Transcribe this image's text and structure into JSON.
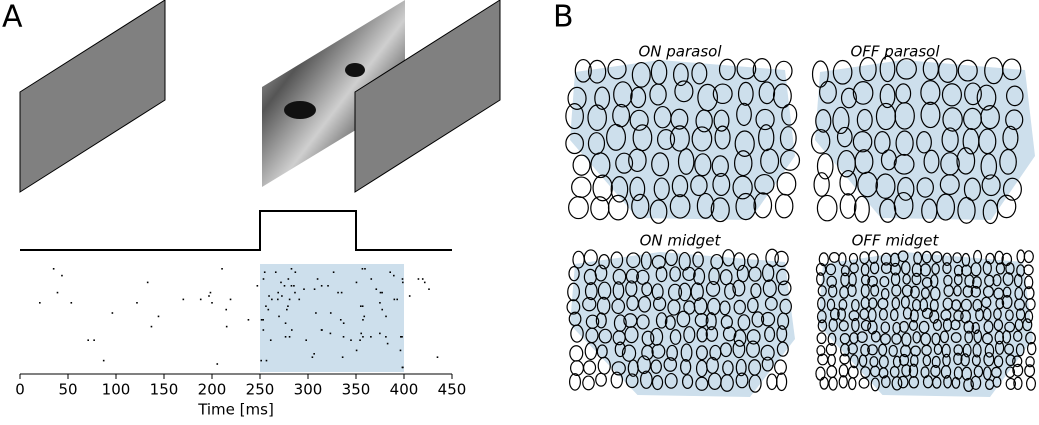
{
  "panel_a": {
    "label": "A",
    "xlim": [
      0,
      450
    ],
    "xticks": [
      0,
      50,
      100,
      150,
      200,
      250,
      300,
      350,
      400,
      450
    ],
    "xlabel": "Time [ms]",
    "stimulus_ms": [
      250,
      350
    ],
    "shaded_ms": [
      250,
      400
    ]
  },
  "panel_b": {
    "label": "B",
    "mosaics": [
      {
        "title": "ON parasol"
      },
      {
        "title": "OFF parasol"
      },
      {
        "title": "ON midget"
      },
      {
        "title": "OFF midget"
      }
    ]
  }
}
